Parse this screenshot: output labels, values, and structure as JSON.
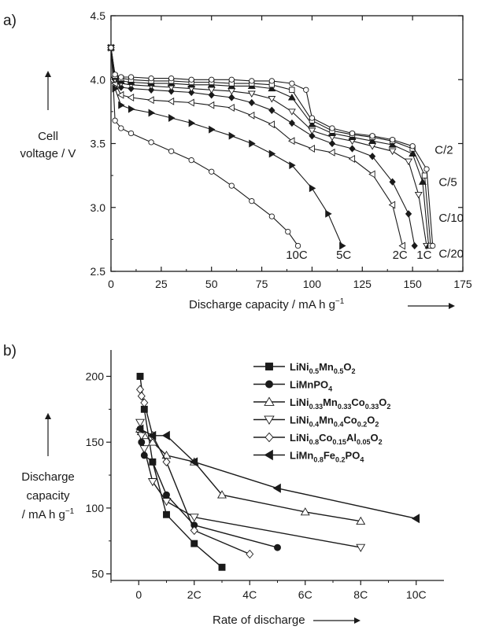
{
  "chart_data": [
    {
      "panel_label": "a)",
      "type": "line",
      "xlabel": "Discharge capacity / mA h g",
      "xlabel_sup": "−1",
      "ylabel_lines": [
        "Cell",
        "voltage / V"
      ],
      "xlim": [
        0,
        175
      ],
      "ylim": [
        2.5,
        4.5
      ],
      "x_ticks": [
        0,
        25,
        50,
        75,
        100,
        125,
        150,
        175
      ],
      "y_ticks": [
        "2.5",
        "3.0",
        "3.5",
        "4.0",
        "4.5"
      ],
      "series": [
        {
          "name": "10C",
          "marker": "circle-open",
          "x": [
            0,
            1,
            2,
            5,
            10,
            20,
            30,
            40,
            50,
            60,
            70,
            80,
            88,
            93
          ],
          "y": [
            4.25,
            4.0,
            3.68,
            3.62,
            3.58,
            3.51,
            3.44,
            3.37,
            3.28,
            3.17,
            3.05,
            2.93,
            2.81,
            2.7
          ]
        },
        {
          "name": "5C",
          "marker": "triangle-right",
          "x": [
            0,
            2,
            5,
            10,
            20,
            30,
            40,
            50,
            60,
            70,
            80,
            90,
            100,
            108,
            115
          ],
          "y": [
            4.25,
            3.93,
            3.8,
            3.77,
            3.74,
            3.7,
            3.66,
            3.61,
            3.56,
            3.5,
            3.42,
            3.33,
            3.15,
            2.95,
            2.7
          ]
        },
        {
          "name": "2C",
          "marker": "triangle-open-left",
          "x": [
            0,
            2,
            5,
            10,
            20,
            30,
            40,
            50,
            60,
            70,
            80,
            90,
            100,
            110,
            120,
            130,
            140,
            145
          ],
          "y": [
            4.25,
            3.97,
            3.88,
            3.86,
            3.84,
            3.83,
            3.82,
            3.8,
            3.78,
            3.72,
            3.65,
            3.52,
            3.46,
            3.43,
            3.38,
            3.26,
            3.02,
            2.7
          ]
        },
        {
          "name": "1C",
          "marker": "diamond",
          "x": [
            0,
            2,
            5,
            10,
            20,
            30,
            40,
            50,
            60,
            70,
            80,
            90,
            100,
            110,
            120,
            130,
            140,
            148,
            151
          ],
          "y": [
            4.25,
            4.0,
            3.94,
            3.93,
            3.92,
            3.91,
            3.9,
            3.88,
            3.86,
            3.82,
            3.76,
            3.66,
            3.56,
            3.5,
            3.46,
            3.4,
            3.2,
            2.95,
            2.7
          ]
        },
        {
          "name": "C/2",
          "marker": "triangle-open-down",
          "x": [
            0,
            2,
            5,
            10,
            20,
            30,
            40,
            50,
            60,
            70,
            80,
            90,
            100,
            110,
            120,
            130,
            140,
            148,
            153,
            157
          ],
          "y": [
            4.25,
            4.0,
            3.97,
            3.96,
            3.95,
            3.94,
            3.93,
            3.92,
            3.91,
            3.89,
            3.85,
            3.75,
            3.6,
            3.55,
            3.52,
            3.48,
            3.44,
            3.36,
            3.1,
            2.7
          ]
        },
        {
          "name": "C/5",
          "marker": "triangle-up",
          "x": [
            0,
            2,
            5,
            10,
            20,
            30,
            40,
            50,
            60,
            70,
            80,
            90,
            100,
            110,
            120,
            130,
            140,
            150,
            155,
            158
          ],
          "y": [
            4.25,
            4.02,
            3.99,
            3.98,
            3.97,
            3.97,
            3.96,
            3.96,
            3.95,
            3.95,
            3.93,
            3.86,
            3.65,
            3.58,
            3.55,
            3.52,
            3.49,
            3.42,
            3.2,
            2.7
          ]
        },
        {
          "name": "C/10",
          "marker": "square-open",
          "x": [
            0,
            2,
            5,
            10,
            20,
            30,
            40,
            50,
            60,
            70,
            80,
            90,
            100,
            110,
            120,
            130,
            140,
            150,
            156,
            159
          ],
          "y": [
            4.25,
            4.03,
            4.01,
            4.0,
            3.99,
            3.99,
            3.98,
            3.98,
            3.97,
            3.97,
            3.96,
            3.92,
            3.68,
            3.6,
            3.57,
            3.55,
            3.52,
            3.46,
            3.25,
            2.7
          ]
        },
        {
          "name": "C/20",
          "marker": "circle-open",
          "x": [
            0,
            2,
            5,
            10,
            20,
            30,
            40,
            50,
            60,
            70,
            80,
            90,
            97,
            100,
            110,
            120,
            130,
            140,
            150,
            157,
            160
          ],
          "y": [
            4.25,
            4.04,
            4.02,
            4.02,
            4.01,
            4.01,
            4.0,
            4.0,
            4.0,
            3.99,
            3.99,
            3.97,
            3.92,
            3.7,
            3.62,
            3.58,
            3.56,
            3.53,
            3.48,
            3.3,
            2.7
          ]
        }
      ],
      "curve_labels": [
        {
          "text": "10C",
          "x": 87,
          "y": 2.63
        },
        {
          "text": "5C",
          "x": 112,
          "y": 2.63
        },
        {
          "text": "2C",
          "x": 140,
          "y": 2.63
        },
        {
          "text": "1C",
          "x": 152,
          "y": 2.63
        },
        {
          "text": "C/2",
          "x": 161,
          "y": 3.45
        },
        {
          "text": "C/5",
          "x": 163,
          "y": 3.2
        },
        {
          "text": "C/10",
          "x": 163,
          "y": 2.92
        },
        {
          "text": "C/20",
          "x": 163,
          "y": 2.64
        }
      ]
    },
    {
      "panel_label": "b)",
      "type": "line",
      "xlabel": "Rate of discharge",
      "ylabel_lines": [
        "Discharge",
        "capacity",
        "/ mA h g"
      ],
      "ylabel_sup": "−1",
      "xlim": [
        -1,
        11
      ],
      "ylim": [
        45,
        220
      ],
      "x_ticks": [
        {
          "v": 0,
          "label": "0"
        },
        {
          "v": 2,
          "label": "2C"
        },
        {
          "v": 4,
          "label": "4C"
        },
        {
          "v": 6,
          "label": "6C"
        },
        {
          "v": 8,
          "label": "8C"
        },
        {
          "v": 10,
          "label": "10C"
        }
      ],
      "y_ticks": [
        50,
        100,
        150,
        200
      ],
      "legend_position": "top-right",
      "series": [
        {
          "legend": [
            {
              "t": "LiNi"
            },
            {
              "t": "0.5",
              "s": 1
            },
            {
              "t": "Mn"
            },
            {
              "t": "0.5",
              "s": 1
            },
            {
              "t": "O"
            },
            {
              "t": "2",
              "s": 1
            }
          ],
          "marker": "square",
          "x": [
            0.05,
            0.2,
            0.5,
            1,
            2,
            3
          ],
          "y": [
            200,
            175,
            135,
            95,
            73,
            55
          ]
        },
        {
          "legend": [
            {
              "t": "LiMnPO"
            },
            {
              "t": "4",
              "s": 1
            }
          ],
          "marker": "circle",
          "x": [
            0.05,
            0.1,
            0.2,
            0.5,
            1,
            2,
            5
          ],
          "y": [
            160,
            150,
            140,
            135,
            110,
            87,
            70
          ]
        },
        {
          "legend": [
            {
              "t": "LiNi"
            },
            {
              "t": "0.33",
              "s": 1
            },
            {
              "t": "Mn"
            },
            {
              "t": "0.33",
              "s": 1
            },
            {
              "t": "Co"
            },
            {
              "t": "0.33",
              "s": 1
            },
            {
              "t": "O"
            },
            {
              "t": "2",
              "s": 1
            }
          ],
          "marker": "triangle-open-up",
          "x": [
            0.05,
            0.1,
            0.2,
            0.5,
            1,
            2,
            3,
            6,
            8
          ],
          "y": [
            160,
            158,
            155,
            150,
            140,
            135,
            110,
            97,
            90
          ]
        },
        {
          "legend": [
            {
              "t": "LiNi"
            },
            {
              "t": "0.4",
              "s": 1
            },
            {
              "t": "Mn"
            },
            {
              "t": "0.4",
              "s": 1
            },
            {
              "t": "Co"
            },
            {
              "t": "0.2",
              "s": 1
            },
            {
              "t": "O"
            },
            {
              "t": "2",
              "s": 1
            }
          ],
          "marker": "triangle-open-down",
          "x": [
            0.05,
            0.1,
            0.2,
            0.5,
            1,
            2,
            8
          ],
          "y": [
            165,
            155,
            145,
            120,
            105,
            93,
            70
          ]
        },
        {
          "legend": [
            {
              "t": "LiNi"
            },
            {
              "t": "0.8",
              "s": 1
            },
            {
              "t": "Co"
            },
            {
              "t": "0.15",
              "s": 1
            },
            {
              "t": "Al"
            },
            {
              "t": "0.05",
              "s": 1
            },
            {
              "t": "O"
            },
            {
              "t": "2",
              "s": 1
            }
          ],
          "marker": "diamond-open",
          "x": [
            0.05,
            0.1,
            0.2,
            0.5,
            1,
            2,
            4
          ],
          "y": [
            190,
            185,
            180,
            155,
            135,
            83,
            65
          ]
        },
        {
          "legend": [
            {
              "t": "LiMn"
            },
            {
              "t": "0.8",
              "s": 1
            },
            {
              "t": "Fe"
            },
            {
              "t": "0.2",
              "s": 1
            },
            {
              "t": "PO"
            },
            {
              "t": "4",
              "s": 1
            }
          ],
          "marker": "triangle-left",
          "x": [
            0.05,
            0.5,
            1,
            2,
            5,
            10
          ],
          "y": [
            160,
            155,
            155,
            135,
            115,
            92
          ]
        }
      ]
    }
  ]
}
